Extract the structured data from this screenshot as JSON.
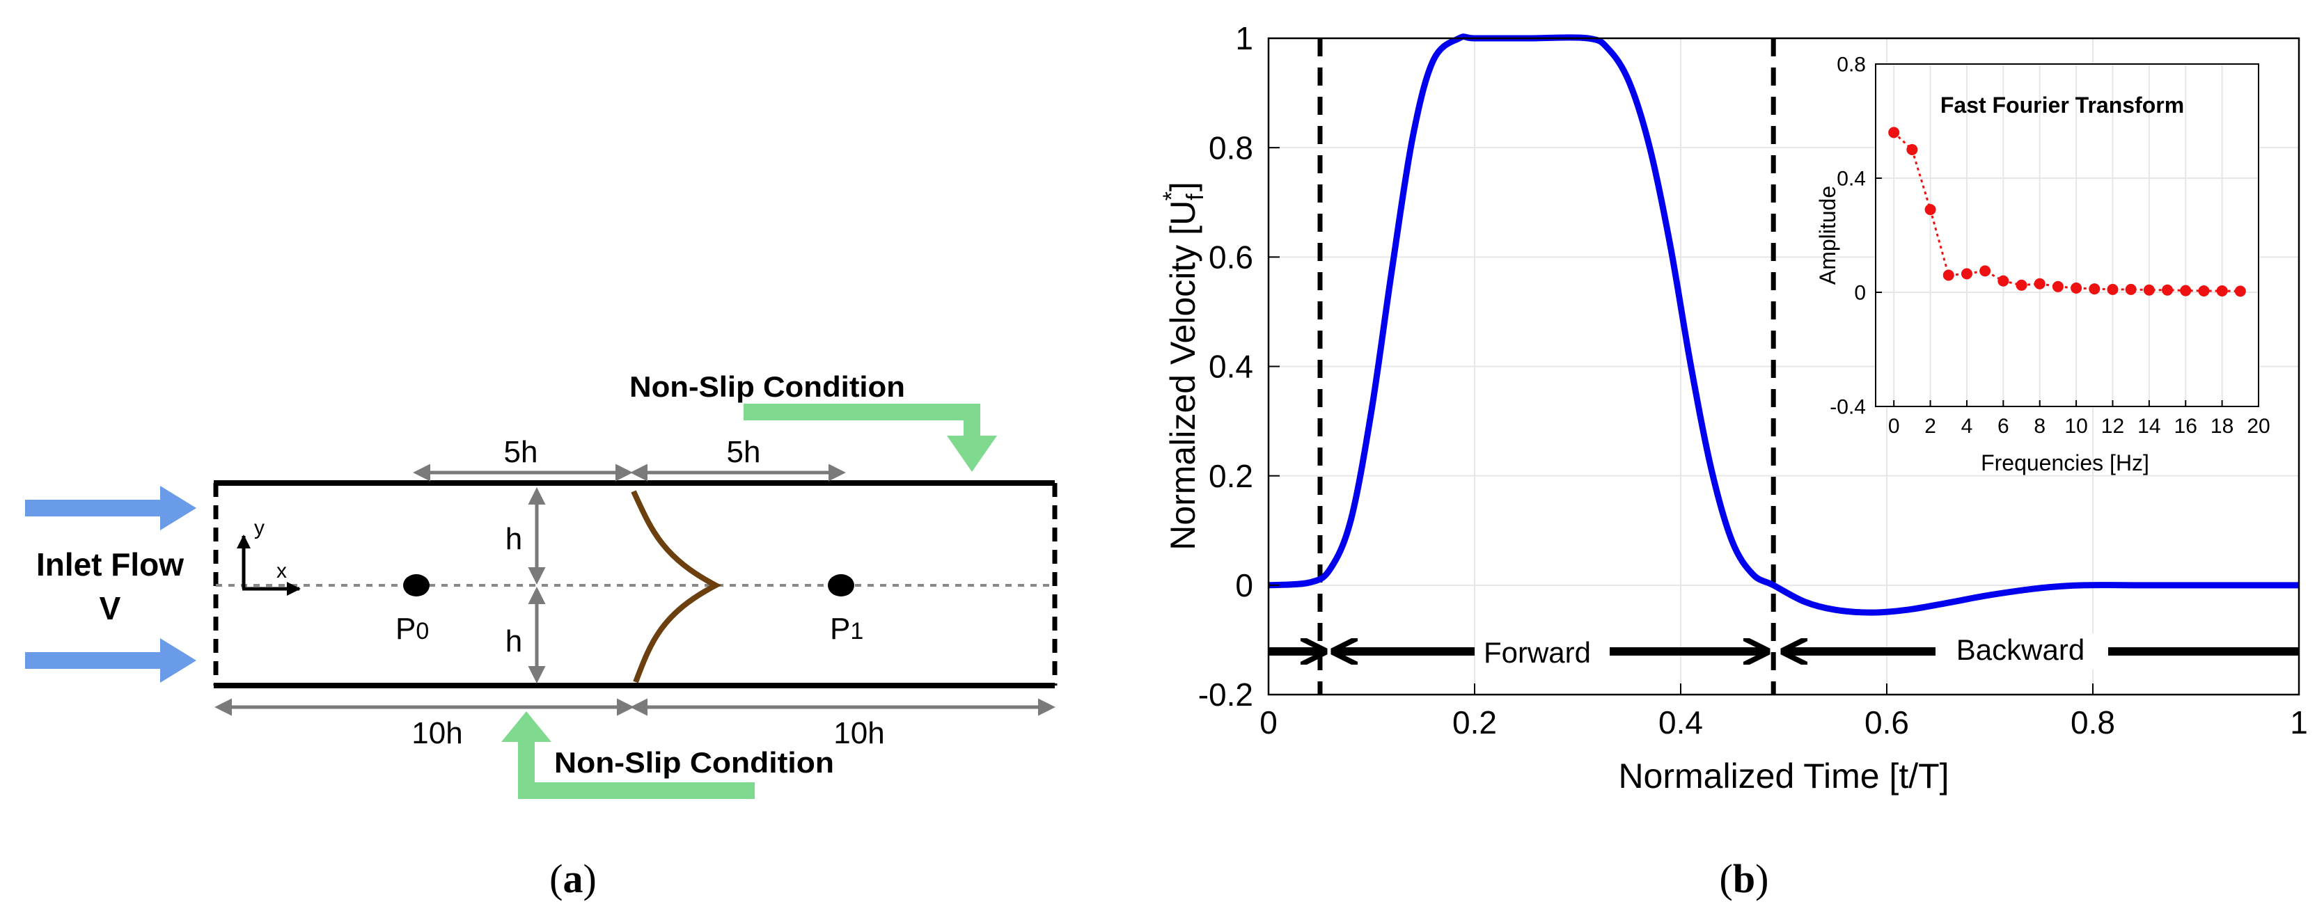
{
  "panel_a": {
    "label_open": "(",
    "label_letter": "a",
    "label_close": ")",
    "inlet_line1": "Inlet Flow",
    "inlet_line2": "V",
    "top_condition": "Non-Slip Condition",
    "bottom_condition": "Non-Slip Condition",
    "dim_top_left": "5h",
    "dim_top_right": "5h",
    "dim_h_upper": "h",
    "dim_h_lower": "h",
    "dim_bottom_left": "10h",
    "dim_bottom_right": "10h",
    "axis_y": "y",
    "axis_x": "x",
    "probe0_letter": "P",
    "probe0_sub": "0",
    "probe1_letter": "P",
    "probe1_sub": "1",
    "colors": {
      "arrow_blue": "#6a9be8",
      "condition_green": "#7fd98e",
      "cilium_brown": "#6b3f0e",
      "dim_gray": "#7a7a7a"
    }
  },
  "panel_b": {
    "label_open": "(",
    "label_letter": "b",
    "label_close": ")",
    "annotations": {
      "forward": "Forward",
      "backward": "Backward"
    }
  },
  "chart_data": [
    {
      "type": "line",
      "title": "",
      "xlabel": "Normalized Time [t/T]",
      "ylabel_main": "Normalized Velocity [U",
      "ylabel_sub": "f",
      "ylabel_sup": "*",
      "ylabel_close": "]",
      "xlim": [
        0,
        1
      ],
      "ylim": [
        -0.2,
        1
      ],
      "xticks": [
        "0",
        "0.2",
        "0.4",
        "0.6",
        "0.8",
        "1"
      ],
      "yticks": [
        "-0.2",
        "0",
        "0.2",
        "0.4",
        "0.6",
        "0.8",
        "1"
      ],
      "grid": true,
      "vlines": [
        0.05,
        0.49
      ],
      "series": [
        {
          "name": "velocity",
          "color": "#0000ee",
          "x": [
            0,
            0.04,
            0.06,
            0.08,
            0.1,
            0.12,
            0.14,
            0.16,
            0.185,
            0.2,
            0.25,
            0.31,
            0.33,
            0.35,
            0.37,
            0.39,
            0.41,
            0.43,
            0.45,
            0.47,
            0.49,
            0.52,
            0.55,
            0.585,
            0.62,
            0.66,
            0.7,
            0.75,
            0.79,
            0.85,
            1.0
          ],
          "y": [
            0.0,
            0.005,
            0.03,
            0.12,
            0.32,
            0.58,
            0.82,
            0.96,
            1.0,
            1.0,
            1.0,
            1.0,
            0.98,
            0.92,
            0.8,
            0.62,
            0.4,
            0.21,
            0.08,
            0.02,
            0.0,
            -0.03,
            -0.045,
            -0.05,
            -0.045,
            -0.032,
            -0.018,
            -0.005,
            0.0,
            0.0,
            0.0
          ]
        }
      ]
    },
    {
      "type": "line",
      "title": "Fast Fourier Transform",
      "xlabel": "Frequencies [Hz]",
      "ylabel": "Amplitude",
      "xlim": [
        -1,
        20
      ],
      "ylim": [
        -0.4,
        0.8
      ],
      "xticks": [
        "0",
        "2",
        "4",
        "6",
        "8",
        "10",
        "12",
        "14",
        "16",
        "18",
        "20"
      ],
      "yticks": [
        "-0.4",
        "0",
        "0.4",
        "0.8"
      ],
      "grid": true,
      "series": [
        {
          "name": "amplitude",
          "color": "#ee1111",
          "x": [
            0,
            1,
            2,
            3,
            4,
            5,
            6,
            7,
            8,
            9,
            10,
            11,
            12,
            13,
            14,
            15,
            16,
            17,
            18,
            19
          ],
          "y": [
            0.56,
            0.5,
            0.29,
            0.06,
            0.065,
            0.075,
            0.04,
            0.025,
            0.03,
            0.02,
            0.015,
            0.012,
            0.01,
            0.01,
            0.008,
            0.008,
            0.006,
            0.005,
            0.005,
            0.004
          ]
        }
      ]
    }
  ]
}
